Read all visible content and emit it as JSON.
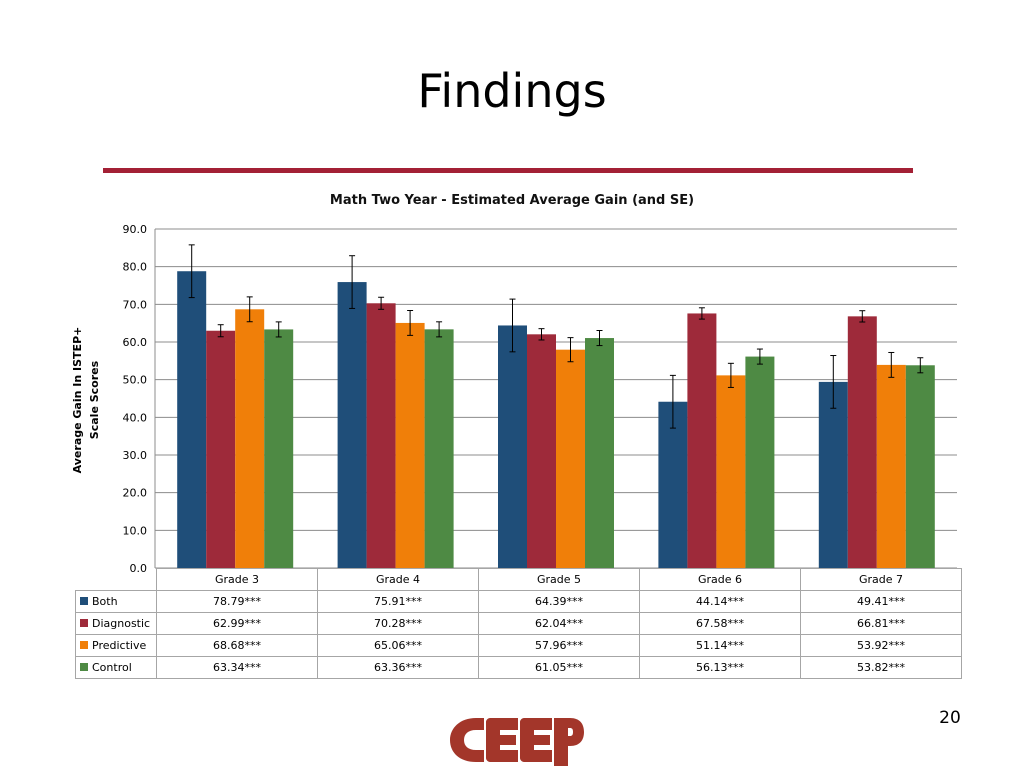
{
  "slide": {
    "title": "Findings",
    "page_number": "20",
    "rule_color": "#a32035",
    "logo_text": "CEEP"
  },
  "chart_data": {
    "type": "bar",
    "title": "Math Two Year - Estimated Average Gain (and SE)",
    "xlabel": "",
    "ylabel": "Average Gain In ISTEP+ Scale Scores",
    "ylim": [
      0,
      90
    ],
    "yticks": [
      "0.0",
      "10.0",
      "20.0",
      "30.0",
      "40.0",
      "50.0",
      "60.0",
      "70.0",
      "80.0",
      "90.0"
    ],
    "grid": true,
    "legend": "data-table",
    "categories": [
      "Grade 3",
      "Grade 4",
      "Grade 5",
      "Grade 6",
      "Grade 7"
    ],
    "series": [
      {
        "name": "Both",
        "color": "#1f4e79",
        "values": [
          78.79,
          75.91,
          64.39,
          44.14,
          49.41
        ],
        "se": [
          7.0,
          7.0,
          7.0,
          7.0,
          7.0
        ],
        "labels": [
          "78.79***",
          "75.91***",
          "64.39***",
          "44.14***",
          "49.41***"
        ]
      },
      {
        "name": "Diagnostic",
        "color": "#9e2a3a",
        "values": [
          62.99,
          70.28,
          62.04,
          67.58,
          66.81
        ],
        "se": [
          1.6,
          1.6,
          1.5,
          1.5,
          1.5
        ],
        "labels": [
          "62.99***",
          "70.28***",
          "62.04***",
          "67.58***",
          "66.81***"
        ]
      },
      {
        "name": "Predictive",
        "color": "#f07f09",
        "values": [
          68.68,
          65.06,
          57.96,
          51.14,
          53.92
        ],
        "se": [
          3.3,
          3.3,
          3.2,
          3.2,
          3.3
        ],
        "labels": [
          "68.68***",
          "65.06***",
          "57.96***",
          "51.14***",
          "53.92***"
        ]
      },
      {
        "name": "Control",
        "color": "#4e8a44",
        "values": [
          63.34,
          63.36,
          61.05,
          56.13,
          53.82
        ],
        "se": [
          2.0,
          2.0,
          2.0,
          2.0,
          2.0
        ],
        "labels": [
          "63.34***",
          "63.36***",
          "61.05***",
          "56.13***",
          "53.82***"
        ]
      }
    ]
  }
}
